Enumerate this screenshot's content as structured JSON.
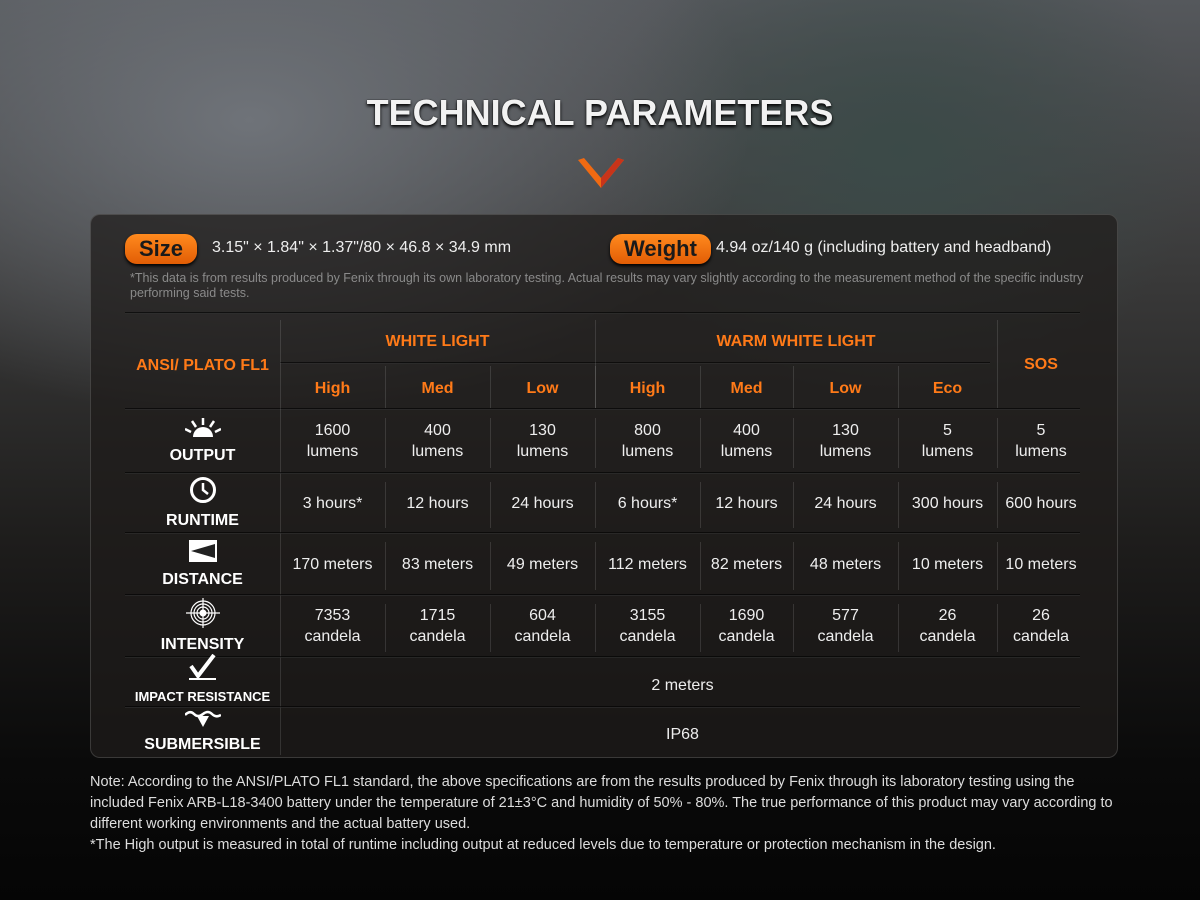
{
  "title": "TECHNICAL PARAMETERS",
  "colors": {
    "accent": "#f07010",
    "header_text": "#ff7a18"
  },
  "size": {
    "label": "Size",
    "value": "3.15\" × 1.84\" × 1.37\"/80 × 46.8 × 34.9 mm"
  },
  "weight": {
    "label": "Weight",
    "value": "4.94 oz/140 g (including battery and headband)"
  },
  "disclaimer": "*This data is from results produced by Fenix through its own laboratory testing. Actual results may vary slightly according to the measurement method of the specific industry performing said tests.",
  "table": {
    "corner": "ANSI/ PLATO FL1",
    "groups": [
      "WHITE LIGHT",
      "WARM WHITE LIGHT",
      "SOS"
    ],
    "modes": [
      "High",
      "Med",
      "Low",
      "High",
      "Med",
      "Low",
      "Eco"
    ],
    "rows": [
      {
        "label": "OUTPUT",
        "icon": "sun-rays-icon",
        "values": [
          [
            "1600",
            "lumens"
          ],
          [
            "400",
            "lumens"
          ],
          [
            "130",
            "lumens"
          ],
          [
            "800",
            "lumens"
          ],
          [
            "400",
            "lumens"
          ],
          [
            "130",
            "lumens"
          ],
          [
            "5",
            "lumens"
          ],
          [
            "5",
            "lumens"
          ]
        ]
      },
      {
        "label": "RUNTIME",
        "icon": "clock-icon",
        "values": [
          [
            "3 hours*"
          ],
          [
            "12 hours"
          ],
          [
            "24 hours"
          ],
          [
            "6 hours*"
          ],
          [
            "12 hours"
          ],
          [
            "24 hours"
          ],
          [
            "300 hours"
          ],
          [
            "600 hours"
          ]
        ]
      },
      {
        "label": "DISTANCE",
        "icon": "beam-distance-icon",
        "values": [
          [
            "170 meters"
          ],
          [
            "83 meters"
          ],
          [
            "49 meters"
          ],
          [
            "112 meters"
          ],
          [
            "82 meters"
          ],
          [
            "48 meters"
          ],
          [
            "10 meters"
          ],
          [
            "10 meters"
          ]
        ]
      },
      {
        "label": "INTENSITY",
        "icon": "target-icon",
        "values": [
          [
            "7353",
            "candela"
          ],
          [
            "1715",
            "candela"
          ],
          [
            "604",
            "candela"
          ],
          [
            "3155",
            "candela"
          ],
          [
            "1690",
            "candela"
          ],
          [
            "577",
            "candela"
          ],
          [
            "26",
            "candela"
          ],
          [
            "26",
            "candela"
          ]
        ]
      }
    ],
    "impact": {
      "label": "IMPACT RESISTANCE",
      "icon": "impact-check-icon",
      "value": "2 meters"
    },
    "submersible": {
      "label": "SUBMERSIBLE",
      "icon": "water-drop-icon",
      "value": "IP68"
    }
  },
  "note": [
    "Note: According to the ANSI/PLATO FL1 standard, the above specifications are from the results produced by Fenix through its laboratory testing using the included Fenix ARB-L18-3400 battery under the temperature of 21±3°C and humidity of 50% - 80%. The true performance of this product may vary according to different working environments and the actual battery used.",
    "*The High output is measured in total of runtime including output at reduced levels due to temperature or protection mechanism in the design."
  ]
}
